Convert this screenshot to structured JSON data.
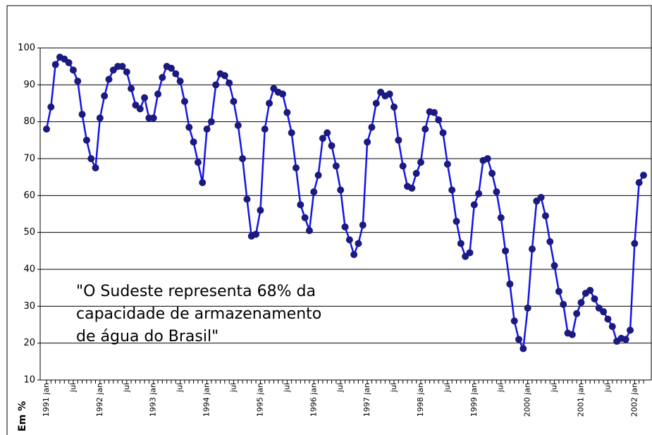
{
  "chart_data": {
    "type": "line",
    "y_axis_label": "Em %",
    "annotation": [
      "\"O Sudeste representa 68% da",
      "capacidade de armazenamento",
      "de água do Brasil\""
    ],
    "categories": [
      "1991 jan",
      null,
      null,
      null,
      null,
      null,
      "jul",
      null,
      null,
      null,
      null,
      null,
      "1992 jan",
      null,
      null,
      null,
      null,
      null,
      "jul",
      null,
      null,
      null,
      null,
      null,
      "1993 jan",
      null,
      null,
      null,
      null,
      null,
      "jul",
      null,
      null,
      null,
      null,
      null,
      "1994 jan",
      null,
      null,
      null,
      null,
      null,
      "jul",
      null,
      null,
      null,
      null,
      null,
      "1995 jan",
      null,
      null,
      null,
      null,
      null,
      "jul",
      null,
      null,
      null,
      null,
      null,
      "1996 jan",
      null,
      null,
      null,
      null,
      null,
      "jul",
      null,
      null,
      null,
      null,
      null,
      "1997 jan",
      null,
      null,
      null,
      null,
      null,
      "jul",
      null,
      null,
      null,
      null,
      null,
      "1998 jan",
      null,
      null,
      null,
      null,
      null,
      "jul",
      null,
      null,
      null,
      null,
      null,
      "1999 jan",
      null,
      null,
      null,
      null,
      null,
      "jul",
      null,
      null,
      null,
      null,
      null,
      "2000 jan",
      null,
      null,
      null,
      null,
      null,
      "jul",
      null,
      null,
      null,
      null,
      null,
      "2001 jan",
      null,
      null,
      null,
      null,
      null,
      "jul",
      null,
      null,
      null,
      null,
      null,
      "2002 jan",
      null,
      null
    ],
    "series": [
      {
        "color": "#1414e6",
        "marker_color": "#1a1a80",
        "values": [
          78,
          84,
          95.5,
          97.5,
          97,
          96,
          94,
          91,
          82,
          75,
          70,
          67.5,
          81,
          87,
          91.5,
          94,
          95,
          95,
          93.5,
          89,
          84.5,
          83.5,
          86.5,
          81,
          81,
          87.5,
          92,
          95,
          94.5,
          93,
          91,
          85.5,
          78.5,
          74.5,
          69,
          63.5,
          78,
          80,
          90,
          93,
          92.5,
          90.5,
          85.5,
          79,
          70,
          59,
          49,
          49.5,
          56,
          78,
          85,
          89,
          88,
          87.5,
          82.5,
          77,
          67.5,
          57.5,
          54,
          50.5,
          61,
          65.5,
          75.5,
          77,
          73.5,
          68,
          61.5,
          51.5,
          48,
          44,
          47,
          52,
          74.5,
          78.5,
          85,
          88,
          87,
          87.5,
          84,
          75,
          68,
          62.5,
          62,
          66,
          69,
          78,
          82.7,
          82.5,
          80.5,
          77,
          68.5,
          61.5,
          53,
          47,
          43.5,
          44.5,
          57.5,
          60.5,
          69.5,
          70,
          66,
          61,
          54,
          45,
          36,
          26,
          21,
          18.5,
          29.5,
          45.5,
          58.5,
          59.5,
          54.5,
          47.5,
          41,
          34,
          30.5,
          22.7,
          22.3,
          28,
          31,
          33.5,
          34.3,
          32,
          29.5,
          28.5,
          26.5,
          24.5,
          20.5,
          21.3,
          21,
          23.5,
          47,
          63.5,
          65.5
        ]
      }
    ],
    "ylim": [
      10,
      100
    ],
    "yticks": [
      10,
      20,
      30,
      40,
      50,
      60,
      70,
      80,
      90,
      100
    ],
    "grid": true
  }
}
